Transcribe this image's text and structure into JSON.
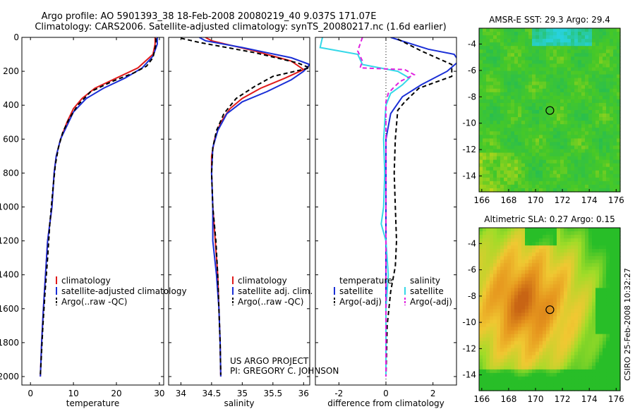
{
  "title_line1": "Argo profile: AO 5901393_38 18-Feb-2008 20080219_40 9.037S 171.07E",
  "title_line2": "Climatology: CARS2006. Satellite-adjusted climatology: synTS_20080217.nc (1.6d earlier)",
  "project_line1": "US ARGO PROJECT",
  "project_line2": "PI: GREGORY C. JOHNSON",
  "side_credit": "CSIRO 25-Feb-2008 10:32:27",
  "colors": {
    "climatology": "#e01b1b",
    "satellite": "#1a2fd6",
    "argo": "#000000",
    "cyan": "#35d8e8",
    "magenta": "#e020e0"
  },
  "chart_data": [
    {
      "type": "line",
      "xlabel": "temperature",
      "ylim": [
        2050,
        0
      ],
      "xlim": [
        -2,
        31
      ],
      "y_ticks": [
        0,
        200,
        400,
        600,
        800,
        1000,
        1200,
        1400,
        1600,
        1800,
        2000
      ],
      "x_ticks": [
        0,
        10,
        20,
        30
      ],
      "legend": [
        "climatology",
        "satellite-adjusted climatology",
        "Argo(..raw -QC)"
      ],
      "series": [
        {
          "name": "climatology",
          "color": "#e01b1b",
          "dash": "",
          "points": [
            [
              29.0,
              0
            ],
            [
              29.0,
              40
            ],
            [
              28.5,
              100
            ],
            [
              25,
              180
            ],
            [
              20,
              240
            ],
            [
              15,
              300
            ],
            [
              12,
              360
            ],
            [
              10,
              420
            ],
            [
              8.5,
              500
            ],
            [
              7,
              600
            ],
            [
              6,
              700
            ],
            [
              5.5,
              800
            ],
            [
              5,
              1000
            ],
            [
              4,
              1200
            ],
            [
              3.5,
              1400
            ],
            [
              3,
              1600
            ],
            [
              2.6,
              1800
            ],
            [
              2.3,
              2000
            ]
          ]
        },
        {
          "name": "satellite-adjusted climatology",
          "color": "#1a2fd6",
          "dash": "",
          "points": [
            [
              29.5,
              0
            ],
            [
              29.5,
              40
            ],
            [
              28.5,
              110
            ],
            [
              26,
              180
            ],
            [
              22,
              240
            ],
            [
              17,
              300
            ],
            [
              13,
              360
            ],
            [
              10,
              440
            ],
            [
              8.5,
              520
            ],
            [
              7,
              600
            ],
            [
              6,
              700
            ],
            [
              5.5,
              800
            ],
            [
              5,
              1000
            ],
            [
              4,
              1200
            ],
            [
              3.5,
              1400
            ],
            [
              3,
              1600
            ],
            [
              2.6,
              1800
            ],
            [
              2.3,
              2000
            ]
          ]
        },
        {
          "name": "Argo(..raw -QC)",
          "color": "#000000",
          "dash": "6,4",
          "points": [
            [
              29.2,
              5
            ],
            [
              29.2,
              40
            ],
            [
              28.5,
              120
            ],
            [
              27,
              170
            ],
            [
              24,
              210
            ],
            [
              19,
              260
            ],
            [
              14,
              320
            ],
            [
              11,
              400
            ],
            [
              9,
              480
            ],
            [
              7.5,
              560
            ],
            [
              6.5,
              650
            ],
            [
              5.8,
              750
            ],
            [
              5.2,
              900
            ],
            [
              4.5,
              1100
            ],
            [
              4,
              1300
            ],
            [
              3.4,
              1500
            ],
            [
              2.9,
              1700
            ],
            [
              2.5,
              1900
            ],
            [
              2.3,
              1990
            ]
          ]
        }
      ]
    },
    {
      "type": "line",
      "xlabel": "salinity",
      "ylim": [
        2050,
        0
      ],
      "xlim": [
        33.8,
        36.1
      ],
      "x_ticks": [
        34,
        34.5,
        35,
        35.5,
        36
      ],
      "legend": [
        "climatology",
        "satellite adj. clim.",
        "Argo(..raw -QC)"
      ],
      "series": [
        {
          "name": "climatology",
          "color": "#e01b1b",
          "dash": "",
          "points": [
            [
              34.4,
              0
            ],
            [
              34.5,
              20
            ],
            [
              35.2,
              80
            ],
            [
              35.8,
              140
            ],
            [
              36.0,
              190
            ],
            [
              35.7,
              240
            ],
            [
              35.3,
              300
            ],
            [
              35.0,
              360
            ],
            [
              34.8,
              420
            ],
            [
              34.65,
              500
            ],
            [
              34.55,
              600
            ],
            [
              34.5,
              700
            ],
            [
              34.5,
              800
            ],
            [
              34.52,
              1000
            ],
            [
              34.56,
              1200
            ],
            [
              34.6,
              1400
            ],
            [
              34.62,
              1600
            ],
            [
              34.64,
              1800
            ],
            [
              34.65,
              2000
            ]
          ]
        },
        {
          "name": "satellite adj. clim.",
          "color": "#1a2fd6",
          "dash": "",
          "points": [
            [
              34.3,
              0
            ],
            [
              34.4,
              20
            ],
            [
              35.0,
              60
            ],
            [
              35.8,
              120
            ],
            [
              36.1,
              160
            ],
            [
              36.0,
              200
            ],
            [
              35.8,
              250
            ],
            [
              35.4,
              320
            ],
            [
              35.0,
              380
            ],
            [
              34.75,
              450
            ],
            [
              34.6,
              550
            ],
            [
              34.52,
              650
            ],
            [
              34.5,
              800
            ],
            [
              34.52,
              1000
            ],
            [
              34.52,
              1200
            ],
            [
              34.58,
              1400
            ],
            [
              34.62,
              1600
            ],
            [
              34.64,
              1800
            ],
            [
              34.65,
              2000
            ]
          ]
        },
        {
          "name": "Argo(..raw -QC)",
          "color": "#000000",
          "dash": "6,4",
          "points": [
            [
              34.0,
              5
            ],
            [
              34.3,
              30
            ],
            [
              35.2,
              90
            ],
            [
              35.9,
              150
            ],
            [
              36.1,
              180
            ],
            [
              35.5,
              230
            ],
            [
              35.2,
              290
            ],
            [
              34.9,
              360
            ],
            [
              34.7,
              450
            ],
            [
              34.58,
              550
            ],
            [
              34.52,
              650
            ],
            [
              34.5,
              800
            ],
            [
              34.52,
              1000
            ],
            [
              34.57,
              1200
            ],
            [
              34.6,
              1400
            ],
            [
              34.62,
              1600
            ],
            [
              34.64,
              1800
            ],
            [
              34.65,
              1990
            ]
          ]
        }
      ]
    },
    {
      "type": "line",
      "xlabel": "difference from climatology",
      "ylim": [
        2050,
        0
      ],
      "xlim": [
        -3,
        3
      ],
      "x_ticks": [
        -2,
        0,
        2
      ],
      "legend_headers": [
        "temperature",
        "salinity"
      ],
      "legend": [
        "satellite",
        "Argo(-adj)",
        "satellite",
        "Argo(-adj)"
      ],
      "series": [
        {
          "name": "satellite",
          "variable": "temperature",
          "color": "#1a2fd6",
          "dash": "",
          "points": [
            [
              0.2,
              0
            ],
            [
              1.8,
              70
            ],
            [
              2.9,
              100
            ],
            [
              3.1,
              140
            ],
            [
              2.6,
              200
            ],
            [
              1.5,
              280
            ],
            [
              0.7,
              350
            ],
            [
              0.2,
              450
            ],
            [
              0,
              600
            ],
            [
              0,
              1000
            ],
            [
              0,
              2000
            ]
          ]
        },
        {
          "name": "Argo(-adj)",
          "variable": "temperature",
          "color": "#000000",
          "dash": "6,4",
          "points": [
            [
              0.5,
              10
            ],
            [
              1.5,
              80
            ],
            [
              2.8,
              160
            ],
            [
              2.8,
              230
            ],
            [
              1.4,
              300
            ],
            [
              0.8,
              380
            ],
            [
              0.5,
              430
            ],
            [
              0.4,
              600
            ],
            [
              0.35,
              800
            ],
            [
              0.4,
              1000
            ],
            [
              0.45,
              1200
            ],
            [
              0.4,
              1350
            ],
            [
              0.2,
              1500
            ],
            [
              0.05,
              1700
            ],
            [
              0,
              2000
            ]
          ]
        },
        {
          "name": "satellite",
          "variable": "salinity",
          "color": "#35d8e8",
          "dash": "",
          "points": [
            [
              -2.7,
              0
            ],
            [
              -2.8,
              60
            ],
            [
              -1.2,
              100
            ],
            [
              -1.0,
              160
            ],
            [
              0.5,
              200
            ],
            [
              1.0,
              240
            ],
            [
              0.7,
              280
            ],
            [
              0.2,
              330
            ],
            [
              0,
              400
            ],
            [
              -0.1,
              600
            ],
            [
              -0.05,
              800
            ],
            [
              -0.1,
              1000
            ],
            [
              -0.2,
              1100
            ],
            [
              0,
              1200
            ],
            [
              0.1,
              1400
            ],
            [
              0,
              1600
            ],
            [
              0,
              2000
            ]
          ]
        },
        {
          "name": "Argo(-adj)",
          "variable": "salinity",
          "color": "#e020e0",
          "dash": "6,4",
          "points": [
            [
              -1.0,
              0
            ],
            [
              -1.2,
              80
            ],
            [
              -1.0,
              140
            ],
            [
              -1.1,
              180
            ],
            [
              0.8,
              190
            ],
            [
              1.2,
              220
            ],
            [
              0.6,
              260
            ],
            [
              0.3,
              300
            ],
            [
              0.1,
              330
            ],
            [
              0,
              380
            ],
            [
              0,
              2000
            ]
          ]
        }
      ]
    },
    {
      "type": "heatmap",
      "title": "AMSR-E SST: 29.3 Argo: 29.4",
      "x_ticks": [
        166,
        168,
        170,
        172,
        174,
        176
      ],
      "y_ticks": [
        -4,
        -6,
        -8,
        -10,
        -12,
        -14
      ],
      "xlim": [
        165.8,
        176.3
      ],
      "ylim": [
        -15.2,
        -2.8
      ],
      "marker": {
        "lon": 171.07,
        "lat": -9.037
      }
    },
    {
      "type": "heatmap",
      "title": "Altimetric SLA: 0.27 Argo: 0.15",
      "x_ticks": [
        166,
        168,
        170,
        172,
        174,
        176
      ],
      "y_ticks": [
        -4,
        -6,
        -8,
        -10,
        -12,
        -14
      ],
      "xlim": [
        165.8,
        176.3
      ],
      "ylim": [
        -15.2,
        -2.8
      ],
      "marker": {
        "lon": 171.07,
        "lat": -9.037
      }
    }
  ]
}
